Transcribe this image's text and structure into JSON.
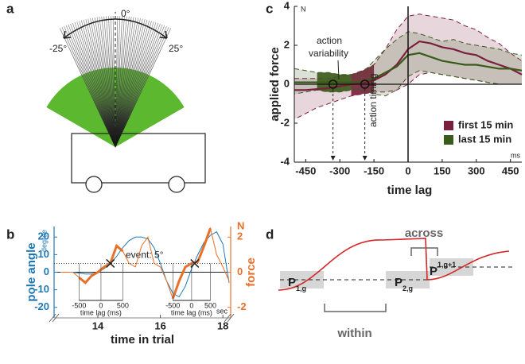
{
  "panels": {
    "a": "a",
    "b": "b",
    "c": "c",
    "d": "d"
  },
  "diagram_a": {
    "labels": [
      "-25°",
      "0°",
      "25°"
    ]
  },
  "chart_data": [
    {
      "type": "line",
      "ylabel": "pole angle",
      "y2label": "force",
      "xlabel": "time in trial",
      "yunit": "degree",
      "y2unit": "N",
      "xunit": "sec",
      "annotation": "event: 5°",
      "threshold": 5,
      "inset_ticks": [
        "-500",
        "0",
        "500"
      ],
      "inset_label": "time lag (ms)",
      "xlim": [
        12.6,
        18.25
      ],
      "xticks": [
        14,
        16,
        18
      ],
      "ylim": [
        -26,
        26
      ],
      "yticks": [
        -20,
        -10,
        0,
        10,
        20
      ],
      "y2lim": [
        -2.6,
        2.6
      ],
      "y2ticks": [
        -2,
        0,
        2
      ],
      "x": [
        12.8,
        13.0,
        13.2,
        13.4,
        13.6,
        13.8,
        14.0,
        14.2,
        14.4,
        14.6,
        14.8,
        15.0,
        15.2,
        15.4,
        15.6,
        15.8,
        16.0,
        16.2,
        16.4,
        16.6,
        16.8,
        17.0,
        17.2,
        17.4,
        17.6,
        17.8,
        18.0,
        18.2
      ],
      "series": [
        {
          "name": "pole angle",
          "color": "#1f77b4",
          "values": [
            0,
            0,
            0,
            -0.5,
            -1,
            -1,
            0,
            2,
            5,
            9,
            14,
            18,
            20,
            20,
            19,
            14,
            5,
            -5,
            -12,
            -14,
            -8,
            2,
            10,
            17,
            21,
            23,
            16,
            -6
          ]
        },
        {
          "name": "force",
          "color": "#e8702a",
          "axis": "y2",
          "values": [
            0,
            0,
            0,
            -0.3,
            -0.6,
            -0.2,
            0,
            0.3,
            0.5,
            1.5,
            1.2,
            0.5,
            0.3,
            1.5,
            2.0,
            0.5,
            0.3,
            -0.5,
            -1.5,
            -0.5,
            0.3,
            0.5,
            0.6,
            1.5,
            2.5,
            1.0,
            0.3,
            -0.5
          ]
        }
      ],
      "highlight_windows": [
        [
          13.4,
          14.8
        ],
        [
          16.4,
          17.6
        ]
      ],
      "events": [
        14.4,
        17.1
      ]
    },
    {
      "type": "line",
      "ylabel": "applied force",
      "xlabel": "time lag",
      "yunit": "N",
      "xunit": "ms",
      "annotations": [
        "action",
        "variability",
        "action timing"
      ],
      "xlim": [
        -500,
        500
      ],
      "xticks": [
        -450,
        -300,
        -150,
        0,
        150,
        300,
        450
      ],
      "ylim": [
        -4,
        4
      ],
      "yticks": [
        -4,
        -2,
        0,
        2,
        4
      ],
      "x": [
        -500,
        -450,
        -400,
        -350,
        -300,
        -250,
        -200,
        -150,
        -100,
        -50,
        0,
        50,
        100,
        150,
        200,
        250,
        300,
        350,
        400,
        450,
        500
      ],
      "series": [
        {
          "name": "first 15 min",
          "color": "#7a1f3d",
          "values": [
            -0.3,
            -0.3,
            -0.25,
            -0.2,
            -0.1,
            0,
            0.05,
            0.2,
            0.5,
            1.0,
            1.8,
            2.2,
            2.1,
            1.9,
            1.8,
            1.6,
            1.5,
            1.2,
            1.0,
            0.8,
            0.5
          ],
          "upper": [
            0.3,
            0.3,
            0.3,
            0.3,
            0.4,
            0.5,
            0.7,
            1.0,
            1.8,
            2.8,
            3.5,
            3.6,
            3.5,
            3.4,
            3.3,
            3.0,
            2.8,
            2.4,
            2.1,
            1.6,
            1.2
          ],
          "lower": [
            -1.8,
            -1.5,
            -1.2,
            -1.0,
            -0.8,
            -0.6,
            -0.5,
            -0.4,
            -0.4,
            -0.3,
            0,
            0.5,
            0.6,
            0.5,
            0.4,
            0.3,
            0.2,
            0.1,
            0,
            0,
            0
          ],
          "window": [
            -250,
            -150
          ]
        },
        {
          "name": "last 15 min",
          "color": "#3a5a1a",
          "values": [
            0.1,
            0.1,
            0.1,
            0.1,
            0.1,
            0.1,
            0.15,
            0.3,
            0.6,
            0.9,
            1.5,
            1.6,
            1.4,
            1.2,
            1.1,
            1.0,
            1.0,
            0.9,
            0.8,
            0.8,
            0.7
          ],
          "upper": [
            0.8,
            0.7,
            0.6,
            0.6,
            0.5,
            0.5,
            0.6,
            1.2,
            1.8,
            2.3,
            2.7,
            2.6,
            2.4,
            2.2,
            2.3,
            2.1,
            2.0,
            1.9,
            1.8,
            1.6,
            1.5
          ],
          "lower": [
            -0.5,
            -0.4,
            -0.3,
            -0.4,
            -0.4,
            -0.3,
            -0.3,
            -0.5,
            -0.6,
            -0.3,
            0.4,
            0.7,
            0.6,
            0.5,
            0.4,
            0.3,
            0.2,
            0.1,
            0,
            0,
            0
          ],
          "window": [
            -400,
            -250
          ]
        }
      ],
      "points": [
        {
          "x": -330,
          "y": 0
        },
        {
          "x": -190,
          "y": 0
        }
      ]
    }
  ],
  "diagram_d": {
    "across": "across",
    "within": "within",
    "nodes": [
      {
        "label": "P",
        "sub": "1,g"
      },
      {
        "label": "P",
        "sub": "2,g"
      },
      {
        "label": "P",
        "sub": "1,g+1"
      }
    ]
  }
}
